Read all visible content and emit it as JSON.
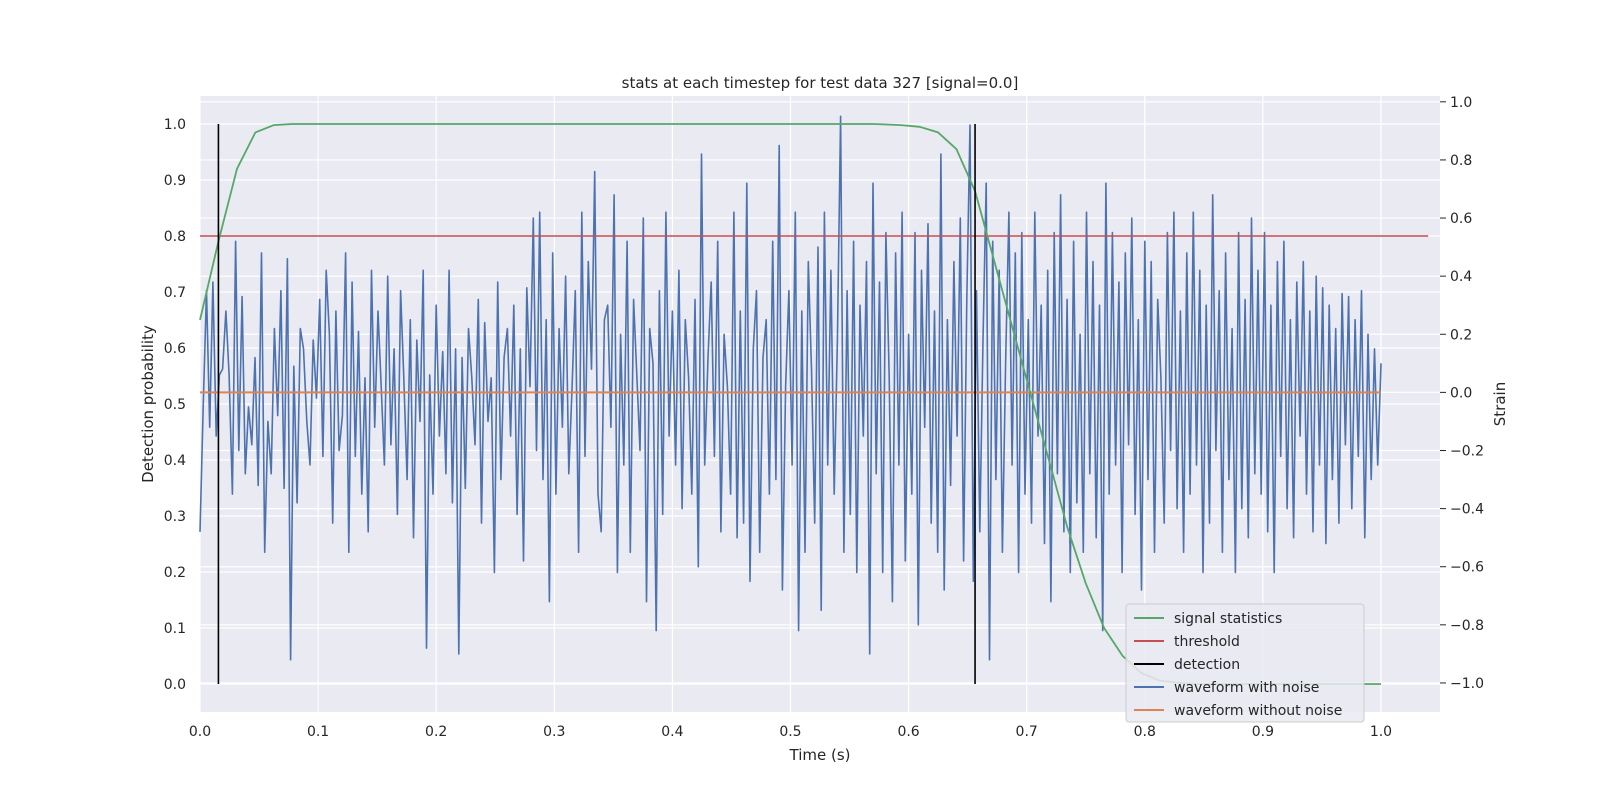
{
  "chart_data": {
    "type": "line",
    "title": "stats at each timestep for test data 327 [signal=0.0]",
    "xlabel": "Time (s)",
    "ylabel": "Detection probability",
    "y2label": "Strain",
    "xlim": [
      0.0,
      1.05
    ],
    "ylim": [
      -0.05,
      1.05
    ],
    "y2lim": [
      -1.1,
      1.02
    ],
    "xticks": [
      0.0,
      0.1,
      0.2,
      0.3,
      0.4,
      0.5,
      0.6,
      0.7,
      0.8,
      0.9,
      1.0
    ],
    "xtick_labels": [
      "0.0",
      "0.1",
      "0.2",
      "0.3",
      "0.4",
      "0.5",
      "0.6",
      "0.7",
      "0.8",
      "0.9",
      "1.0"
    ],
    "yticks": [
      0.0,
      0.1,
      0.2,
      0.3,
      0.4,
      0.5,
      0.6,
      0.7,
      0.8,
      0.9,
      1.0
    ],
    "ytick_labels": [
      "0.0",
      "0.1",
      "0.2",
      "0.3",
      "0.4",
      "0.5",
      "0.6",
      "0.7",
      "0.8",
      "0.9",
      "1.0"
    ],
    "y2ticks": [
      -1.0,
      -0.8,
      -0.6,
      -0.4,
      -0.2,
      0.0,
      0.2,
      0.4,
      0.6,
      0.8,
      1.0
    ],
    "y2tick_labels": [
      "−1.0",
      "−0.8",
      "−0.6",
      "−0.4",
      "−0.2",
      "0.0",
      "0.2",
      "0.4",
      "0.6",
      "0.8",
      "1.0"
    ],
    "grid": true,
    "legend_position": "lower-right",
    "series": [
      {
        "name": "signal statistics",
        "color": "#55a868",
        "axis": "left",
        "x": [
          0.0,
          0.0156,
          0.0313,
          0.0469,
          0.0625,
          0.0781,
          0.1,
          0.2,
          0.3,
          0.4,
          0.5,
          0.57,
          0.5938,
          0.6094,
          0.625,
          0.6406,
          0.6563,
          0.6719,
          0.6875,
          0.7031,
          0.7188,
          0.7344,
          0.75,
          0.7656,
          0.7813,
          0.7969,
          0.8125,
          0.8281,
          0.8438,
          0.86,
          0.9,
          1.0
        ],
        "y": [
          0.65,
          0.79,
          0.92,
          0.985,
          0.998,
          1.0,
          1.0,
          1.0,
          1.0,
          1.0,
          1.0,
          1.0,
          0.998,
          0.995,
          0.985,
          0.955,
          0.88,
          0.76,
          0.64,
          0.52,
          0.4,
          0.28,
          0.18,
          0.1,
          0.05,
          0.02,
          0.006,
          0.002,
          0.0,
          0.0,
          0.0,
          0.0
        ]
      },
      {
        "name": "threshold",
        "color": "#c44e52",
        "axis": "left",
        "x": [
          0.0,
          1.04
        ],
        "y": [
          0.8,
          0.8
        ]
      },
      {
        "name": "detection",
        "color": "#000000",
        "axis": "left",
        "x_lines": [
          0.0156,
          0.6563
        ],
        "y": [
          0.0,
          1.0
        ]
      },
      {
        "name": "waveform with noise",
        "color": "#4c72b0",
        "axis": "right",
        "x_start": 0.0,
        "x_end": 1.0,
        "values": [
          -0.48,
          -0.05,
          0.35,
          -0.12,
          0.38,
          -0.15,
          0.06,
          0.08,
          0.28,
          0.06,
          -0.35,
          0.52,
          -0.2,
          0.33,
          -0.28,
          -0.05,
          -0.18,
          0.12,
          -0.32,
          0.48,
          -0.55,
          -0.1,
          -0.28,
          0.22,
          -0.08,
          0.35,
          -0.33,
          0.46,
          -0.92,
          0.09,
          -0.38,
          0.22,
          0.15,
          -0.1,
          -0.25,
          0.18,
          -0.02,
          0.32,
          -0.22,
          0.42,
          0.2,
          -0.45,
          0.28,
          -0.2,
          -0.08,
          0.48,
          -0.55,
          0.38,
          -0.22,
          0.21,
          -0.35,
          0.05,
          -0.48,
          0.42,
          -0.12,
          0.28,
          0.02,
          -0.25,
          0.4,
          -0.18,
          0.15,
          -0.42,
          0.35,
          0.05,
          -0.3,
          0.25,
          -0.5,
          0.18,
          -0.1,
          0.42,
          -0.88,
          0.06,
          -0.35,
          0.3,
          -0.15,
          0.14,
          -0.28,
          0.42,
          -0.38,
          0.15,
          -0.9,
          0.12,
          -0.33,
          0.22,
          0.05,
          -0.18,
          0.32,
          -0.45,
          0.24,
          -0.1,
          0.05,
          -0.62,
          0.38,
          -0.3,
          0.12,
          0.22,
          -0.15,
          0.3,
          -0.42,
          0.15,
          -0.58,
          0.36,
          0.02,
          0.6,
          -0.2,
          0.62,
          -0.3,
          0.25,
          -0.72,
          0.48,
          -0.35,
          0.22,
          -0.12,
          0.4,
          -0.28,
          0.02,
          0.35,
          -0.55,
          0.62,
          -0.22,
          0.45,
          0.08,
          0.76,
          -0.35,
          -0.48,
          0.25,
          0.3,
          -0.12,
          0.68,
          -0.62,
          0.2,
          -0.25,
          0.52,
          -0.55,
          0.32,
          0.06,
          -0.2,
          0.6,
          -0.72,
          0.22,
          0.1,
          -0.82,
          0.35,
          -0.42,
          0.62,
          -0.15,
          0.28,
          -0.25,
          0.42,
          -0.4,
          0.25,
          0.05,
          -0.35,
          0.32,
          -0.6,
          0.82,
          -0.25,
          0.12,
          0.38,
          -0.22,
          0.52,
          -0.48,
          0.2,
          0.02,
          -0.35,
          0.62,
          -0.5,
          0.28,
          -0.45,
          0.72,
          -0.65,
          0.15,
          0.35,
          -0.55,
          0.12,
          0.25,
          -0.35,
          0.52,
          -0.3,
          0.85,
          -0.68,
          0.02,
          0.35,
          -0.25,
          0.62,
          -0.82,
          0.28,
          -0.55,
          0.45,
          0.08,
          -0.45,
          0.5,
          -0.75,
          0.62,
          -0.25,
          0.42,
          -0.35,
          0.18,
          0.95,
          -0.55,
          0.35,
          -0.42,
          0.52,
          -0.62,
          0.3,
          -0.15,
          0.45,
          -0.9,
          0.72,
          -0.28,
          0.38,
          -0.62,
          0.55,
          0.05,
          -0.72,
          0.48,
          -0.25,
          0.62,
          -0.58,
          0.2,
          -0.35,
          0.55,
          -0.8,
          0.42,
          -0.12,
          0.58,
          -0.45,
          0.28,
          -0.55,
          0.82,
          -0.68,
          0.25,
          -0.32,
          0.45,
          -0.15,
          0.6,
          -0.58,
          0.32,
          0.92,
          -0.65,
          0.35,
          -0.48,
          0.18,
          0.72,
          -0.92,
          0.52,
          -0.3,
          0.42,
          -0.55,
          0.1,
          0.62,
          -0.25,
          0.48,
          -0.62,
          0.55,
          -0.35,
          0.25,
          -0.45,
          0.62,
          -0.15,
          0.3,
          -0.52,
          0.42,
          -0.72,
          0.55,
          -0.28,
          0.68,
          -0.48,
          0.32,
          -0.62,
          0.52,
          -0.38,
          0.2,
          -0.55,
          0.62,
          -0.28,
          0.45,
          -0.5,
          0.3,
          -0.82,
          0.72,
          -0.35,
          0.55,
          -0.25,
          0.38,
          -0.62,
          0.48,
          -0.18,
          0.6,
          -0.42,
          0.25,
          -0.68,
          0.52,
          -0.3,
          0.45,
          -0.55,
          0.32,
          0.05,
          -0.45,
          0.55,
          -0.2,
          0.62,
          -0.4,
          0.28,
          -0.55,
          0.48,
          -0.35,
          0.62,
          -0.25,
          0.42,
          -0.62,
          0.3,
          -0.45,
          0.68,
          -0.2,
          0.35,
          -0.55,
          0.48,
          -0.3,
          0.22,
          -0.62,
          0.55,
          -0.4,
          0.32,
          -0.5,
          0.6,
          -0.28,
          0.42,
          -0.35,
          0.55,
          -0.48,
          0.3,
          -0.62,
          0.45,
          -0.22,
          0.52,
          -0.4,
          0.25,
          -0.5,
          0.38,
          -0.15,
          0.45,
          -0.35,
          0.28,
          -0.48,
          0.4,
          -0.25,
          0.36,
          -0.52,
          0.3,
          -0.3,
          0.22,
          -0.45,
          0.34,
          -0.18,
          0.33,
          -0.4,
          0.25,
          -0.22,
          0.35,
          -0.5,
          0.2,
          -0.3,
          0.15,
          -0.25,
          0.1
        ]
      },
      {
        "name": "waveform without noise",
        "color": "#dd8452",
        "axis": "right",
        "x": [
          0.0,
          1.0
        ],
        "y": [
          0.0,
          0.0
        ]
      }
    ],
    "legend": {
      "entries": [
        {
          "label": "signal statistics",
          "color": "#55a868"
        },
        {
          "label": "threshold",
          "color": "#c44e52"
        },
        {
          "label": "detection",
          "color": "#000000"
        },
        {
          "label": "waveform with noise",
          "color": "#4c72b0"
        },
        {
          "label": "waveform without noise",
          "color": "#dd8452"
        }
      ]
    },
    "style": {
      "plot_background": "#eaeaf2",
      "grid_color": "#ffffff",
      "text_color": "#262626"
    }
  }
}
